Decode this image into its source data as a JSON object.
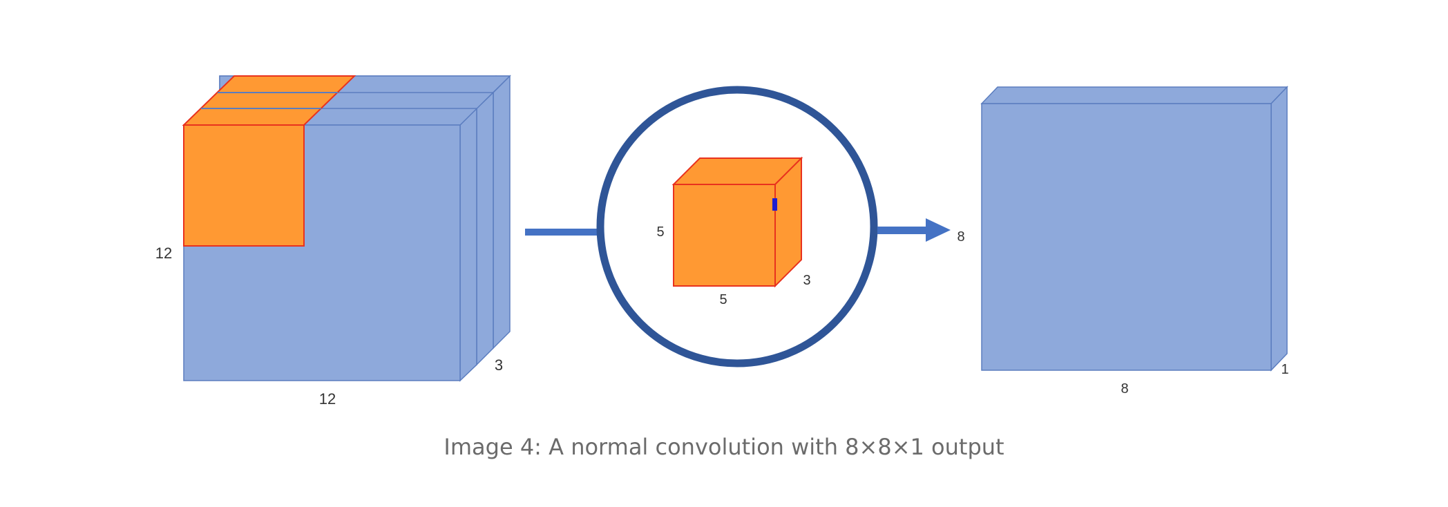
{
  "colors": {
    "volume_fill": "#8EA9DB",
    "volume_stroke": "#5B7DBF",
    "kernel_fill": "#FF9933",
    "kernel_stroke": "#E8321E",
    "ring_stroke": "#2F5597",
    "arrow": "#4472C4",
    "marker": "#1F1FD0"
  },
  "input_volume": {
    "height_label": "12",
    "width_label": "12",
    "depth_label": "3"
  },
  "kernel": {
    "height_label": "5",
    "width_label": "5",
    "depth_label": "3"
  },
  "output_volume": {
    "height_label": "8",
    "width_label": "8",
    "depth_label": "1"
  },
  "caption": "Image 4: A normal convolution with 8×8×1 output"
}
